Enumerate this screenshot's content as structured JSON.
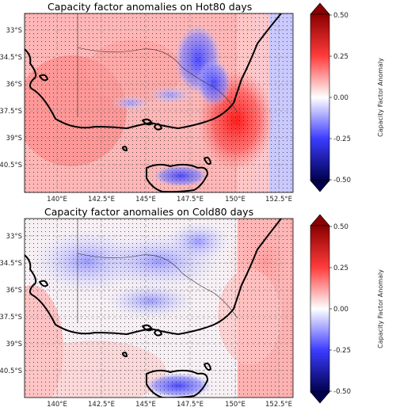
{
  "panels": [
    {
      "title": "Capacity factor anomalies on Hot80 days",
      "lat_ticks": [
        "33°S",
        "34.5°S",
        "36°S",
        "37.5°S",
        "39°S",
        "40.5°S"
      ],
      "lon_ticks": [
        "140°E",
        "142.5°E",
        "145°E",
        "147.5°E",
        "150°E",
        "152.5°E"
      ],
      "pattern": "positive anomalies over most land and ocean, strongest east of the coast near 37.5°S; negative anomalies over the eastern highlands and southern Tasmania"
    },
    {
      "title": "Capacity factor anomalies on Cold80 days",
      "lat_ticks": [
        "33°S",
        "34.5°S",
        "36°S",
        "37.5°S",
        "39°S",
        "40.5°S"
      ],
      "lon_ticks": [
        "140°E",
        "142.5°E",
        "145°E",
        "147.5°E",
        "150°E",
        "152.5°E"
      ],
      "pattern": "negative anomalies over inland south-east Australia and Tasmania; positive anomalies over the ocean east of the coast"
    }
  ],
  "colorbar": {
    "label": "Capacity Factor Anomaly",
    "ticks": [
      "0.50",
      "0.25",
      "0.00",
      "-0.25",
      "-0.50"
    ],
    "range": [
      -0.5,
      0.5
    ],
    "colormap": "seismic",
    "colors": {
      "max": "#8b0000",
      "high": "#ff2a2a",
      "zero": "#ffffff",
      "low": "#2a2aff",
      "min": "#00004d"
    }
  }
}
